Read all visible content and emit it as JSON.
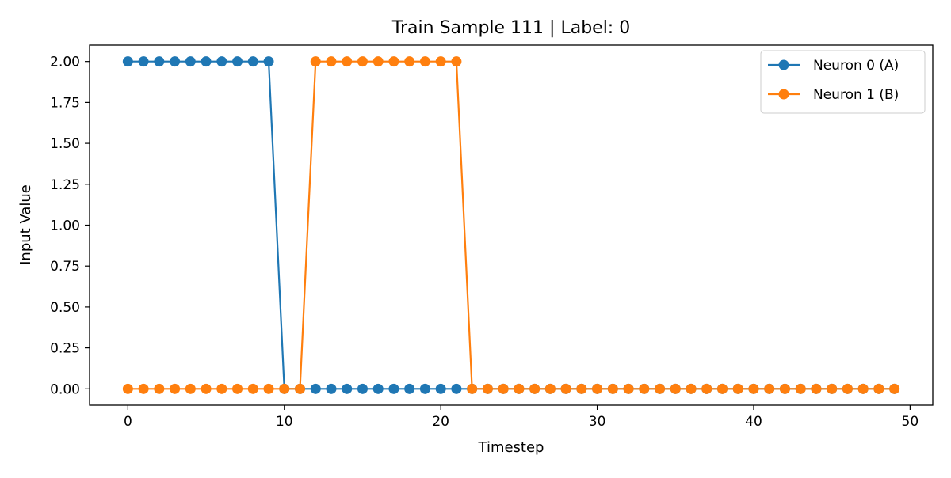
{
  "chart_data": {
    "type": "line",
    "title": "Train Sample 111 | Label: 0",
    "xlabel": "Timestep",
    "ylabel": "Input Value",
    "xlim": [
      -2.45,
      51.45
    ],
    "ylim": [
      -0.1,
      2.1
    ],
    "xticks": [
      0,
      10,
      20,
      30,
      40,
      50
    ],
    "yticks": [
      0.0,
      0.25,
      0.5,
      0.75,
      1.0,
      1.25,
      1.5,
      1.75,
      2.0
    ],
    "ytick_labels": [
      "0.00",
      "0.25",
      "0.50",
      "0.75",
      "1.00",
      "1.25",
      "1.50",
      "1.75",
      "2.00"
    ],
    "grid": false,
    "legend_position": "top-right",
    "x": [
      0,
      1,
      2,
      3,
      4,
      5,
      6,
      7,
      8,
      9,
      10,
      11,
      12,
      13,
      14,
      15,
      16,
      17,
      18,
      19,
      20,
      21,
      22,
      23,
      24,
      25,
      26,
      27,
      28,
      29,
      30,
      31,
      32,
      33,
      34,
      35,
      36,
      37,
      38,
      39,
      40,
      41,
      42,
      43,
      44,
      45,
      46,
      47,
      48,
      49
    ],
    "series": [
      {
        "name": "Neuron 0 (A)",
        "color": "#1f77b4",
        "values": [
          2,
          2,
          2,
          2,
          2,
          2,
          2,
          2,
          2,
          2,
          0,
          0,
          0,
          0,
          0,
          0,
          0,
          0,
          0,
          0,
          0,
          0,
          0,
          0,
          0,
          0,
          0,
          0,
          0,
          0,
          0,
          0,
          0,
          0,
          0,
          0,
          0,
          0,
          0,
          0,
          0,
          0,
          0,
          0,
          0,
          0,
          0,
          0,
          0,
          0
        ]
      },
      {
        "name": "Neuron 1 (B)",
        "color": "#ff7f0e",
        "values": [
          0,
          0,
          0,
          0,
          0,
          0,
          0,
          0,
          0,
          0,
          0,
          0,
          2,
          2,
          2,
          2,
          2,
          2,
          2,
          2,
          2,
          2,
          0,
          0,
          0,
          0,
          0,
          0,
          0,
          0,
          0,
          0,
          0,
          0,
          0,
          0,
          0,
          0,
          0,
          0,
          0,
          0,
          0,
          0,
          0,
          0,
          0,
          0,
          0,
          0
        ]
      }
    ]
  }
}
